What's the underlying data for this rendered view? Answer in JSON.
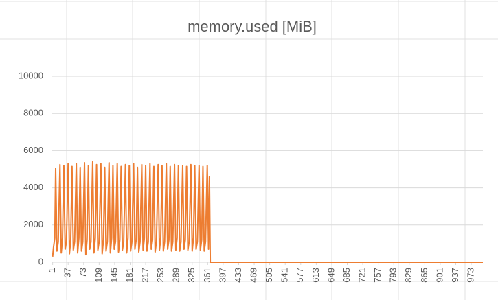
{
  "chart_data": {
    "type": "line",
    "title": "memory.used [MiB]",
    "x": [
      1,
      3,
      6,
      8,
      11,
      14,
      18,
      21,
      24,
      27,
      30,
      33,
      37,
      40,
      43,
      46,
      49,
      52,
      56,
      59,
      62,
      65,
      68,
      71,
      75,
      78,
      81,
      84,
      87,
      90,
      94,
      97,
      100,
      103,
      106,
      109,
      113,
      116,
      119,
      122,
      125,
      128,
      132,
      135,
      138,
      141,
      144,
      147,
      151,
      154,
      157,
      160,
      163,
      166,
      170,
      173,
      176,
      179,
      182,
      185,
      189,
      192,
      195,
      198,
      201,
      204,
      208,
      211,
      214,
      217,
      220,
      223,
      227,
      230,
      233,
      236,
      239,
      242,
      246,
      249,
      252,
      255,
      258,
      261,
      265,
      268,
      271,
      274,
      277,
      280,
      284,
      287,
      290,
      293,
      296,
      299,
      303,
      306,
      309,
      312,
      315,
      318,
      322,
      325,
      328,
      331,
      334,
      337,
      341,
      344,
      347,
      350,
      353,
      356,
      360,
      363,
      365,
      367,
      1000
    ],
    "values": [
      300,
      800,
      1300,
      5050,
      600,
      1100,
      5250,
      500,
      1300,
      5200,
      700,
      1100,
      5300,
      450,
      1200,
      5150,
      650,
      1100,
      5300,
      500,
      1300,
      5100,
      600,
      1100,
      5350,
      400,
      1200,
      5200,
      700,
      1100,
      5400,
      500,
      1300,
      5250,
      650,
      1100,
      5300,
      450,
      1200,
      5100,
      600,
      1100,
      5350,
      500,
      1300,
      5200,
      700,
      1100,
      5300,
      550,
      1200,
      5150,
      650,
      1100,
      5250,
      500,
      1300,
      5200,
      600,
      1100,
      5300,
      700,
      1200,
      5100,
      550,
      1100,
      5250,
      650,
      1300,
      5200,
      600,
      1100,
      5300,
      700,
      1200,
      5150,
      550,
      1100,
      5250,
      650,
      1300,
      5200,
      600,
      1100,
      5300,
      700,
      1200,
      5150,
      600,
      1100,
      5250,
      650,
      1300,
      5200,
      600,
      1100,
      5200,
      700,
      1200,
      5150,
      650,
      1100,
      5250,
      600,
      1300,
      5200,
      700,
      1100,
      5200,
      650,
      1200,
      5150,
      600,
      1100,
      5200,
      700,
      4600,
      0,
      0
    ],
    "color": "#ed7d31",
    "xlim": [
      0,
      1000
    ],
    "xticks": [
      1,
      37,
      73,
      109,
      145,
      181,
      217,
      253,
      289,
      325,
      361,
      397,
      433,
      469,
      505,
      541,
      577,
      613,
      649,
      685,
      721,
      757,
      793,
      829,
      865,
      901,
      937,
      973
    ],
    "ylim": [
      0,
      10000
    ],
    "yticks": [
      0,
      2000,
      4000,
      6000,
      8000,
      10000
    ],
    "grid": true
  }
}
